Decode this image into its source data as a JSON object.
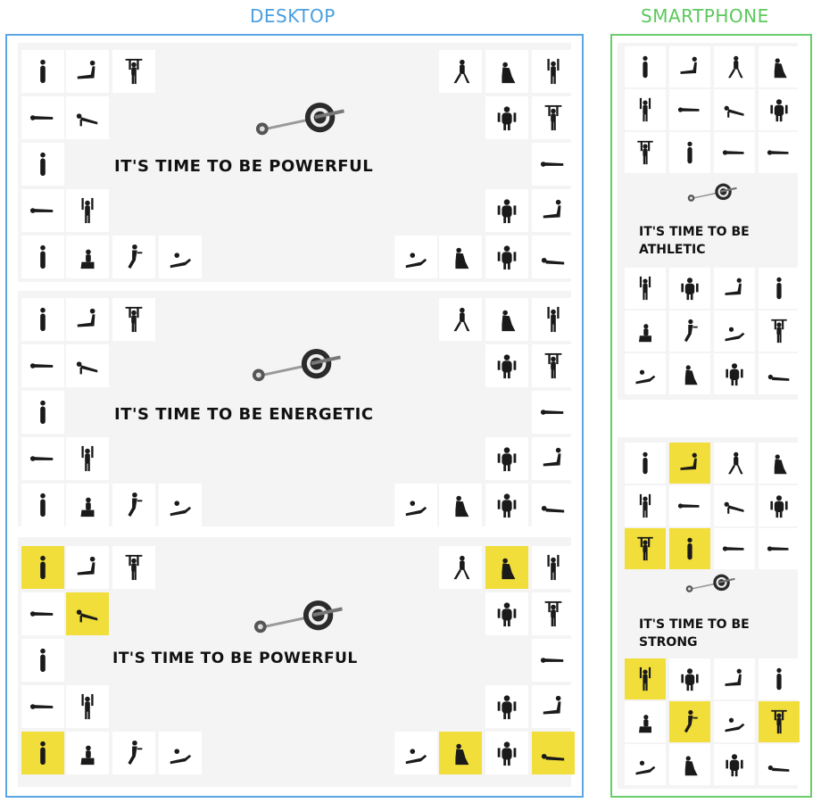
{
  "labels": {
    "desktop": "DESKTOP",
    "smartphone": "SMARTPHONE"
  },
  "colors": {
    "desktop_frame": "#5aa6e6",
    "smartphone_frame": "#6acc6a",
    "highlight": "#f2de3a"
  },
  "desktop_banners": [
    {
      "tagline": "IT'S TIME TO BE POWERFUL",
      "highlighted_tiles": 0
    },
    {
      "tagline": "IT'S TIME TO BE ENERGETIC",
      "highlighted_tiles": 0
    },
    {
      "tagline": "IT'S TIME TO BE POWERFUL",
      "highlighted_tiles": 6
    }
  ],
  "phone_banners": [
    {
      "tagline": "IT'S TIME TO BE ATHLETIC",
      "highlighted_tiles": 0
    },
    {
      "tagline": "IT'S TIME TO BE STRONG",
      "highlighted_tiles": 6
    }
  ],
  "icons": [
    "exercise-figure-icon",
    "barbell-icon"
  ]
}
